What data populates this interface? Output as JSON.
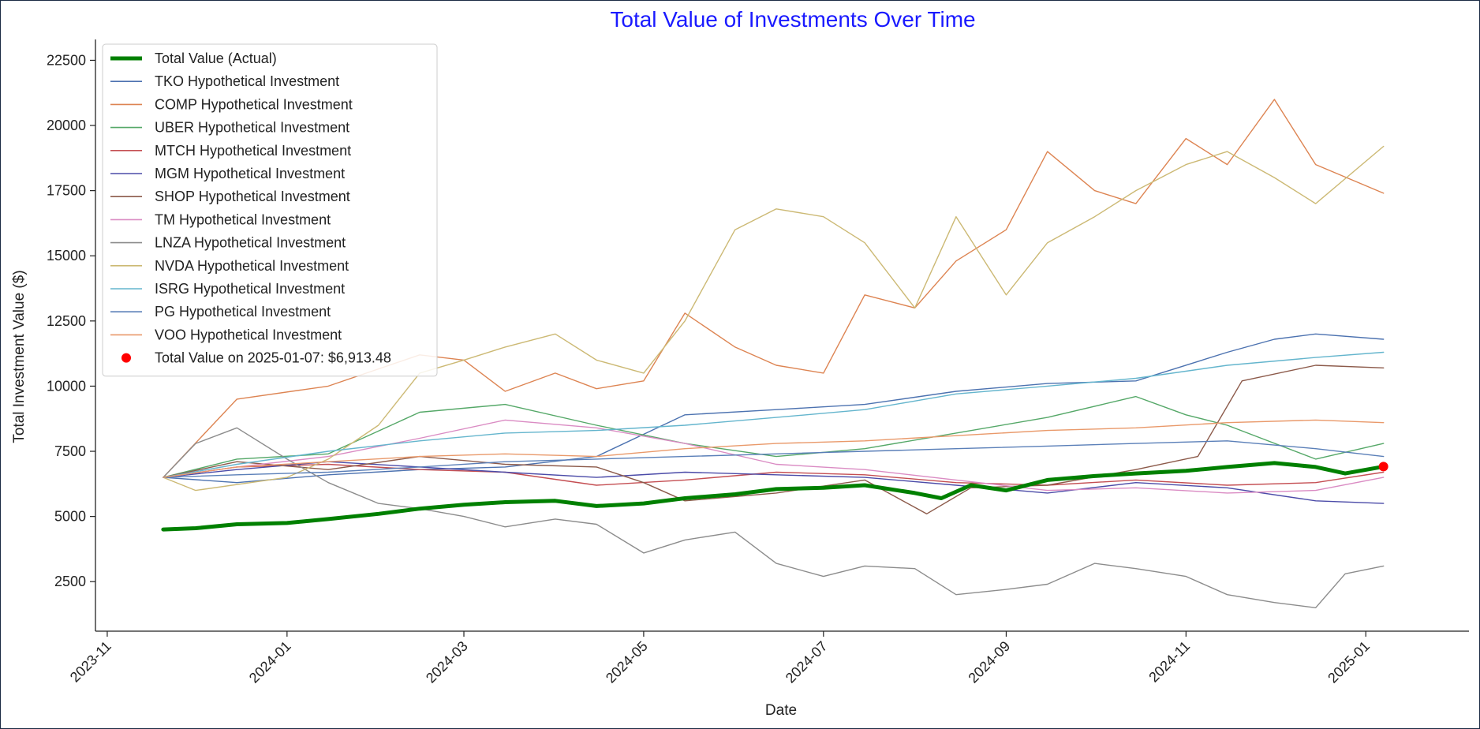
{
  "chart_data": {
    "type": "line",
    "title": "Total Value of Investments Over Time",
    "title_color": "#1a1aff",
    "xlabel": "Date",
    "ylabel": "Total Investment Value ($)",
    "xlim": [
      "2023-10-28",
      "2025-02-05"
    ],
    "ylim": [
      600,
      23300
    ],
    "y_ticks": [
      2500,
      5000,
      7500,
      10000,
      12500,
      15000,
      17500,
      20000,
      22500
    ],
    "x_ticks": [
      "2023-11",
      "2024-01",
      "2024-03",
      "2024-05",
      "2024-07",
      "2024-09",
      "2024-11",
      "2025-01"
    ],
    "grid": false,
    "legend_position": "upper-left",
    "series": [
      {
        "name": "Total Value (Actual)",
        "color": "#008000",
        "width": 5,
        "x": [
          "2023-11-20",
          "2023-12-01",
          "2023-12-15",
          "2024-01-01",
          "2024-01-15",
          "2024-02-01",
          "2024-02-15",
          "2024-03-01",
          "2024-03-15",
          "2024-04-01",
          "2024-04-15",
          "2024-05-01",
          "2024-05-15",
          "2024-06-01",
          "2024-06-15",
          "2024-07-01",
          "2024-07-15",
          "2024-08-01",
          "2024-08-10",
          "2024-08-20",
          "2024-09-01",
          "2024-09-15",
          "2024-10-01",
          "2024-10-15",
          "2024-11-01",
          "2024-11-15",
          "2024-12-01",
          "2024-12-15",
          "2024-12-25",
          "2025-01-07"
        ],
        "y": [
          4500,
          4550,
          4700,
          4750,
          4900,
          5100,
          5300,
          5450,
          5550,
          5600,
          5400,
          5500,
          5700,
          5850,
          6050,
          6100,
          6200,
          5900,
          5700,
          6200,
          6000,
          6400,
          6550,
          6650,
          6750,
          6900,
          7050,
          6900,
          6650,
          6913.48
        ]
      },
      {
        "name": "TKO Hypothetical Investment",
        "color": "#4c72b0",
        "width": 1.4,
        "x": [
          "2023-11-20",
          "2023-12-15",
          "2024-01-15",
          "2024-02-15",
          "2024-03-15",
          "2024-04-15",
          "2024-05-15",
          "2024-06-15",
          "2024-07-15",
          "2024-08-15",
          "2024-09-15",
          "2024-10-15",
          "2024-11-15",
          "2024-12-01",
          "2024-12-15",
          "2025-01-07"
        ],
        "y": [
          6500,
          6300,
          6600,
          6800,
          6900,
          7300,
          8900,
          9100,
          9300,
          9800,
          10100,
          10200,
          11300,
          11800,
          12000,
          11800
        ]
      },
      {
        "name": "COMP Hypothetical Investment",
        "color": "#dd8452",
        "width": 1.4,
        "x": [
          "2023-11-20",
          "2023-12-15",
          "2024-01-15",
          "2024-02-15",
          "2024-03-01",
          "2024-03-15",
          "2024-04-01",
          "2024-04-15",
          "2024-05-01",
          "2024-05-15",
          "2024-06-01",
          "2024-06-15",
          "2024-07-01",
          "2024-07-15",
          "2024-08-01",
          "2024-08-15",
          "2024-09-01",
          "2024-09-15",
          "2024-10-01",
          "2024-10-15",
          "2024-11-01",
          "2024-11-15",
          "2024-12-01",
          "2024-12-15",
          "2025-01-07"
        ],
        "y": [
          6500,
          9500,
          10000,
          11200,
          11000,
          9800,
          10500,
          9900,
          10200,
          12800,
          11500,
          10800,
          10500,
          13500,
          13000,
          14800,
          16000,
          19000,
          17500,
          17000,
          19500,
          18500,
          21000,
          18500,
          17400
        ]
      },
      {
        "name": "UBER Hypothetical Investment",
        "color": "#55a868",
        "width": 1.4,
        "x": [
          "2023-11-20",
          "2023-12-15",
          "2024-01-15",
          "2024-02-15",
          "2024-03-15",
          "2024-04-15",
          "2024-05-15",
          "2024-06-15",
          "2024-07-15",
          "2024-08-15",
          "2024-09-15",
          "2024-10-15",
          "2024-11-01",
          "2024-11-15",
          "2024-12-15",
          "2025-01-07"
        ],
        "y": [
          6500,
          7200,
          7400,
          9000,
          9300,
          8500,
          7800,
          7300,
          7600,
          8200,
          8800,
          9600,
          8900,
          8500,
          7200,
          7800
        ]
      },
      {
        "name": "MTCH Hypothetical Investment",
        "color": "#c44e52",
        "width": 1.4,
        "x": [
          "2023-11-20",
          "2023-12-15",
          "2024-01-15",
          "2024-02-15",
          "2024-03-15",
          "2024-04-15",
          "2024-05-15",
          "2024-06-15",
          "2024-07-15",
          "2024-08-15",
          "2024-09-15",
          "2024-10-15",
          "2024-11-15",
          "2024-12-15",
          "2025-01-07"
        ],
        "y": [
          6500,
          6900,
          7000,
          6800,
          6700,
          6200,
          6400,
          6700,
          6600,
          6300,
          6200,
          6400,
          6200,
          6300,
          6700
        ]
      },
      {
        "name": "MGM Hypothetical Investment",
        "color": "#4b4ba8",
        "width": 1.4,
        "x": [
          "2023-11-20",
          "2023-12-15",
          "2024-01-15",
          "2024-02-15",
          "2024-03-15",
          "2024-04-15",
          "2024-05-15",
          "2024-06-15",
          "2024-07-15",
          "2024-08-15",
          "2024-09-15",
          "2024-10-15",
          "2024-11-15",
          "2024-12-15",
          "2025-01-07"
        ],
        "y": [
          6500,
          6800,
          7100,
          6900,
          6700,
          6500,
          6700,
          6600,
          6500,
          6200,
          5900,
          6300,
          6100,
          5600,
          5500
        ]
      },
      {
        "name": "SHOP Hypothetical Investment",
        "color": "#8c5a4a",
        "width": 1.4,
        "x": [
          "2023-11-20",
          "2023-12-15",
          "2024-01-15",
          "2024-02-15",
          "2024-03-15",
          "2024-04-15",
          "2024-05-01",
          "2024-05-15",
          "2024-06-15",
          "2024-07-15",
          "2024-08-05",
          "2024-08-20",
          "2024-09-15",
          "2024-10-15",
          "2024-11-05",
          "2024-11-20",
          "2024-12-15",
          "2025-01-07"
        ],
        "y": [
          6500,
          7100,
          6800,
          7300,
          7000,
          6900,
          6300,
          5600,
          5900,
          6400,
          5100,
          6100,
          6200,
          6800,
          7300,
          10200,
          10800,
          10700
        ]
      },
      {
        "name": "TM Hypothetical Investment",
        "color": "#da8bc3",
        "width": 1.4,
        "x": [
          "2023-11-20",
          "2023-12-15",
          "2024-01-15",
          "2024-02-15",
          "2024-03-15",
          "2024-04-15",
          "2024-05-15",
          "2024-06-15",
          "2024-07-15",
          "2024-08-15",
          "2024-09-15",
          "2024-10-15",
          "2024-11-15",
          "2024-12-15",
          "2025-01-07"
        ],
        "y": [
          6500,
          6900,
          7300,
          8000,
          8700,
          8400,
          7800,
          7000,
          6800,
          6400,
          6000,
          6100,
          5900,
          6000,
          6500
        ]
      },
      {
        "name": "LNZA Hypothetical Investment",
        "color": "#8c8c8c",
        "width": 1.4,
        "x": [
          "2023-11-20",
          "2023-12-01",
          "2023-12-15",
          "2024-01-01",
          "2024-01-15",
          "2024-02-01",
          "2024-02-15",
          "2024-03-01",
          "2024-03-15",
          "2024-04-01",
          "2024-04-15",
          "2024-05-01",
          "2024-05-15",
          "2024-06-01",
          "2024-06-15",
          "2024-07-01",
          "2024-07-15",
          "2024-08-01",
          "2024-08-15",
          "2024-09-01",
          "2024-09-15",
          "2024-10-01",
          "2024-10-15",
          "2024-11-01",
          "2024-11-15",
          "2024-12-01",
          "2024-12-15",
          "2024-12-25",
          "2025-01-07"
        ],
        "y": [
          6500,
          7800,
          8400,
          7200,
          6300,
          5500,
          5300,
          5000,
          4600,
          4900,
          4700,
          3600,
          4100,
          4400,
          3200,
          2700,
          3100,
          3000,
          2000,
          2200,
          2400,
          3200,
          3000,
          2700,
          2000,
          1700,
          1500,
          2800,
          3100
        ]
      },
      {
        "name": "NVDA Hypothetical Investment",
        "color": "#ccb974",
        "width": 1.4,
        "x": [
          "2023-11-20",
          "2023-12-01",
          "2024-01-01",
          "2024-01-15",
          "2024-02-01",
          "2024-02-15",
          "2024-03-01",
          "2024-03-15",
          "2024-04-01",
          "2024-04-15",
          "2024-05-01",
          "2024-05-15",
          "2024-06-01",
          "2024-06-15",
          "2024-07-01",
          "2024-07-15",
          "2024-08-01",
          "2024-08-15",
          "2024-09-01",
          "2024-09-15",
          "2024-10-01",
          "2024-10-15",
          "2024-11-01",
          "2024-11-15",
          "2024-12-01",
          "2024-12-15",
          "2025-01-07"
        ],
        "y": [
          6500,
          6000,
          6500,
          7200,
          8500,
          10500,
          11000,
          11500,
          12000,
          11000,
          10500,
          12500,
          16000,
          16800,
          16500,
          15500,
          13000,
          16500,
          13500,
          15500,
          16500,
          17500,
          18500,
          19000,
          18000,
          17000,
          19200
        ]
      },
      {
        "name": "ISRG Hypothetical Investment",
        "color": "#64b5cd",
        "width": 1.4,
        "x": [
          "2023-11-20",
          "2023-12-15",
          "2024-01-15",
          "2024-02-15",
          "2024-03-15",
          "2024-04-15",
          "2024-05-15",
          "2024-06-15",
          "2024-07-15",
          "2024-08-15",
          "2024-09-15",
          "2024-10-15",
          "2024-11-15",
          "2024-12-15",
          "2025-01-07"
        ],
        "y": [
          6500,
          7000,
          7500,
          7900,
          8200,
          8300,
          8500,
          8800,
          9100,
          9700,
          10000,
          10300,
          10800,
          11100,
          11300
        ]
      },
      {
        "name": "PG Hypothetical Investment",
        "color": "#5a7fb8",
        "width": 1.4,
        "x": [
          "2023-11-20",
          "2023-12-15",
          "2024-01-15",
          "2024-02-15",
          "2024-03-15",
          "2024-04-15",
          "2024-05-15",
          "2024-06-15",
          "2024-07-15",
          "2024-08-15",
          "2024-09-15",
          "2024-10-15",
          "2024-11-15",
          "2024-12-15",
          "2025-01-07"
        ],
        "y": [
          6500,
          6600,
          6700,
          6900,
          7100,
          7200,
          7300,
          7400,
          7500,
          7600,
          7700,
          7800,
          7900,
          7600,
          7300
        ]
      },
      {
        "name": "VOO Hypothetical Investment",
        "color": "#e9996a",
        "width": 1.4,
        "x": [
          "2023-11-20",
          "2023-12-15",
          "2024-01-15",
          "2024-02-15",
          "2024-03-15",
          "2024-04-15",
          "2024-05-15",
          "2024-06-15",
          "2024-07-15",
          "2024-08-15",
          "2024-09-15",
          "2024-10-15",
          "2024-11-15",
          "2024-12-15",
          "2025-01-07"
        ],
        "y": [
          6500,
          6900,
          7100,
          7300,
          7400,
          7300,
          7600,
          7800,
          7900,
          8100,
          8300,
          8400,
          8600,
          8700,
          8600
        ]
      }
    ],
    "marker": {
      "label": "Total Value on 2025-01-07: $6,913.48",
      "x": "2025-01-07",
      "y": 6913.48,
      "color": "#ff0000"
    }
  }
}
